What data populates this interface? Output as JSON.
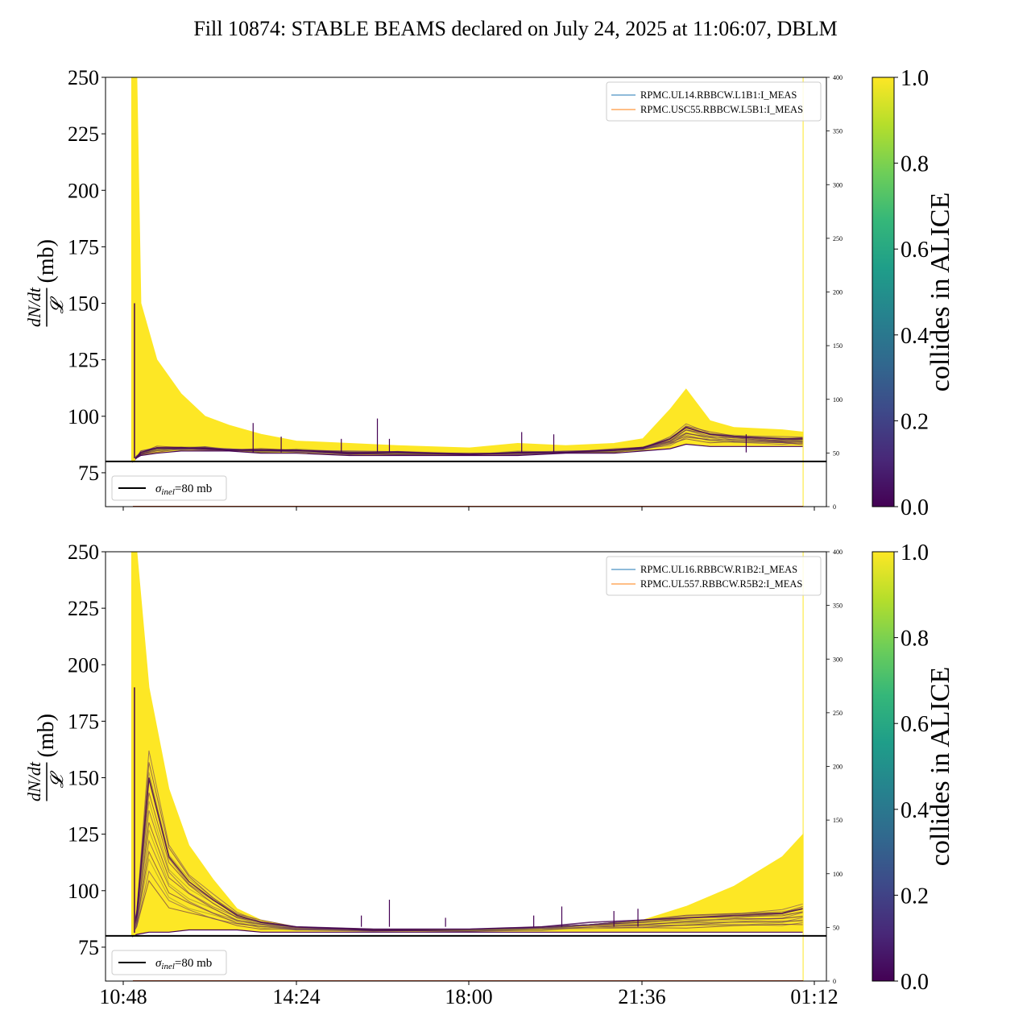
{
  "figure_title": "Fill 10874: STABLE BEAMS declared on July 24, 2025 at 11:06:07, DBLM",
  "colors": {
    "viridis": [
      "#440154",
      "#482878",
      "#3e4989",
      "#31688e",
      "#26828e",
      "#1f9e89",
      "#35b779",
      "#6ece58",
      "#b5de2b",
      "#fde725"
    ],
    "dominant_trace": "#fde725",
    "secondary_trace": "#440154",
    "reference_line": "#000000",
    "legend_series_1": "#1f77b4",
    "legend_series_2": "#ff7f0e"
  },
  "chart_data": [
    {
      "type": "line",
      "title": "",
      "ylabel": "dN/dt / 𝓛 (mb)",
      "ylabel_numerator": "dN/dt",
      "ylabel_denominator": "𝓛",
      "ylabel_unit": "(mb)",
      "ylim": [
        60,
        250
      ],
      "yticks": [
        75,
        100,
        125,
        150,
        175,
        200,
        225,
        250
      ],
      "x_ticks": [
        "10:48",
        "14:24",
        "18:00",
        "21:36",
        "01:12"
      ],
      "x_tick_labels_shown": false,
      "secondary_yticks": [
        0,
        50,
        100,
        150,
        200,
        250,
        300,
        350,
        400
      ],
      "secondary_ylim": [
        0,
        400
      ],
      "legend_upper": [
        "RPMC.UL14.RBBCW.L1B1:I_MEAS",
        "RPMC.USC55.RBBCW.L5B1:I_MEAS"
      ],
      "legend_lower": "σinel=80 mb",
      "legend_lower_symbol": "σ",
      "legend_lower_sub": "inel",
      "legend_lower_rest": "=80 mb",
      "reference_line_mb": 80,
      "colorbar_label": "collides in ALICE",
      "colorbar_ticks": [
        "0.0",
        "0.2",
        "0.4",
        "0.6",
        "0.8",
        "1.0"
      ],
      "start_time": "10:59",
      "end_time": "00:56",
      "envelope": {
        "x": [
          "10:59",
          "11:05",
          "11:10",
          "11:30",
          "12:00",
          "12:30",
          "13:00",
          "13:40",
          "14:24",
          "15:30",
          "16:30",
          "18:00",
          "19:00",
          "20:00",
          "21:00",
          "21:36",
          "22:10",
          "22:30",
          "23:00",
          "23:30",
          "00:30",
          "00:56"
        ],
        "upper": [
          250,
          250,
          150,
          125,
          110,
          100,
          96,
          92,
          89,
          88,
          87,
          86,
          88,
          87,
          88,
          90,
          103,
          112,
          98,
          95,
          94,
          93
        ],
        "lower": [
          80,
          82,
          83,
          84,
          85,
          85,
          85,
          84,
          84,
          83,
          83,
          83,
          83,
          84,
          84,
          85,
          86,
          88,
          87,
          87,
          87,
          87
        ],
        "purple_band": [
          80,
          82,
          84,
          86,
          86,
          86,
          85,
          85,
          85,
          84,
          84,
          83,
          84,
          84,
          85,
          86,
          90,
          95,
          92,
          91,
          90,
          90
        ]
      },
      "spikes": [
        {
          "t": "13:30",
          "v": 97
        },
        {
          "t": "14:05",
          "v": 91
        },
        {
          "t": "15:20",
          "v": 90
        },
        {
          "t": "16:05",
          "v": 99
        },
        {
          "t": "16:20",
          "v": 90
        },
        {
          "t": "19:05",
          "v": 93
        },
        {
          "t": "19:45",
          "v": 92
        },
        {
          "t": "23:45",
          "v": 92
        }
      ],
      "secondary_series": {
        "x": [
          "11:00",
          "00:56",
          "00:57",
          "00:58"
        ],
        "values": [
          0,
          0,
          400,
          0
        ]
      }
    },
    {
      "type": "line",
      "title": "",
      "ylabel": "dN/dt / 𝓛 (mb)",
      "ylabel_numerator": "dN/dt",
      "ylabel_denominator": "𝓛",
      "ylabel_unit": "(mb)",
      "ylim": [
        60,
        250
      ],
      "yticks": [
        75,
        100,
        125,
        150,
        175,
        200,
        225,
        250
      ],
      "x_ticks": [
        "10:48",
        "14:24",
        "18:00",
        "21:36",
        "01:12"
      ],
      "x_tick_labels_shown": true,
      "secondary_yticks": [
        0,
        50,
        100,
        150,
        200,
        250,
        300,
        350,
        400
      ],
      "secondary_ylim": [
        0,
        400
      ],
      "legend_upper": [
        "RPMC.UL16.RBBCW.R1B2:I_MEAS",
        "RPMC.UL557.RBBCW.R5B2:I_MEAS"
      ],
      "legend_lower": "σinel=80 mb",
      "legend_lower_symbol": "σ",
      "legend_lower_sub": "inel",
      "legend_lower_rest": "=80 mb",
      "reference_line_mb": 80,
      "colorbar_label": "collides in ALICE",
      "colorbar_ticks": [
        "0.0",
        "0.2",
        "0.4",
        "0.6",
        "0.8",
        "1.0"
      ],
      "start_time": "10:59",
      "end_time": "00:56",
      "envelope": {
        "x": [
          "10:59",
          "11:05",
          "11:20",
          "11:45",
          "12:10",
          "12:40",
          "13:10",
          "13:40",
          "14:24",
          "16:00",
          "18:00",
          "19:30",
          "20:30",
          "21:36",
          "22:30",
          "23:30",
          "00:30",
          "00:56"
        ],
        "upper": [
          250,
          250,
          190,
          145,
          120,
          105,
          92,
          87,
          84,
          83,
          83,
          84,
          85,
          87,
          93,
          102,
          115,
          125
        ],
        "lower": [
          80,
          81,
          82,
          82,
          83,
          83,
          83,
          82,
          82,
          82,
          82,
          82,
          82,
          82,
          82,
          82,
          82,
          82
        ],
        "purple_band": [
          80,
          90,
          150,
          115,
          104,
          96,
          89,
          86,
          84,
          83,
          83,
          84,
          86,
          87,
          88,
          89,
          90,
          92
        ]
      },
      "spikes": [
        {
          "t": "15:45",
          "v": 89
        },
        {
          "t": "16:20",
          "v": 96
        },
        {
          "t": "17:30",
          "v": 88
        },
        {
          "t": "19:20",
          "v": 89
        },
        {
          "t": "19:55",
          "v": 93
        },
        {
          "t": "21:00",
          "v": 91
        },
        {
          "t": "21:30",
          "v": 92
        }
      ],
      "secondary_series": {
        "x": [
          "11:00",
          "00:56",
          "00:57",
          "00:58"
        ],
        "values": [
          0,
          0,
          400,
          0
        ]
      }
    }
  ]
}
